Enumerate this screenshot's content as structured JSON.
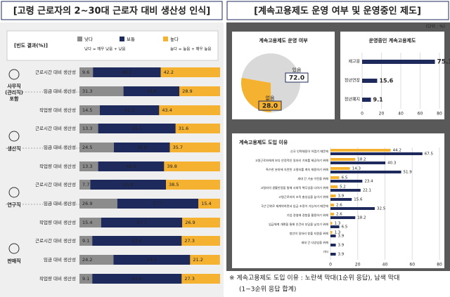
{
  "chart_data": [
    {
      "type": "stacked-bar",
      "title": "[고령 근로자의 2~30대 근로자 대비 생산성 인식]",
      "legend_title": "[빈도 결과(%)]",
      "legend_notes": [
        "낮다 = 매우 낮음 + 낮음",
        "높다 = 높음 + 매우 높음"
      ],
      "groups": [
        [
          "사무직",
          "(관리직)",
          "포함"
        ],
        [
          "생산직"
        ],
        [
          "연구직"
        ],
        [
          "판매직"
        ]
      ],
      "categories": [
        "근로시간 대비 생산성",
        "임금 대비 생산성",
        "작업량 대비 생산성",
        "근로시간 대비 생산성",
        "임금 대비 생산성",
        "작업량 대비 생산성",
        "근로시간 대비 생산성",
        "임금 대비 생산성",
        "작업량 대비 생산성",
        "근로시간 대비 생산성",
        "임금 대비 생산성",
        "작업량 대비 생산성"
      ],
      "xlim": [
        0,
        100
      ],
      "series": [
        {
          "name": "낮다",
          "color": "#8c8c8c",
          "values": [
            9.6,
            31.3,
            14.5,
            13.3,
            24.5,
            13.3,
            7.7,
            26.9,
            15.4,
            9.1,
            24.2,
            9.1
          ]
        },
        {
          "name": "보통",
          "color": "#1f2a5c",
          "values": [
            48.2,
            39.8,
            42.2,
            55.1,
            39.8,
            46.9,
            53.8,
            57.7,
            57.7,
            63.6,
            54.5,
            63.6
          ]
        },
        {
          "name": "높다",
          "color": "#f5b230",
          "values": [
            42.2,
            28.9,
            43.4,
            31.6,
            35.7,
            39.8,
            38.5,
            15.4,
            26.9,
            27.3,
            21.2,
            27.3
          ]
        }
      ]
    },
    {
      "type": "pie",
      "panel_title": "[계속고용제도 운영 여부 및 운영중인 제도]",
      "unit": "(단위 : %)",
      "title": "계속고용제도 운영 여부",
      "categories": [
        "있음",
        "없음"
      ],
      "values": [
        72.0,
        28.0
      ],
      "value_labels": [
        "72.0",
        "28.0"
      ],
      "colors": [
        "#d9d9d9",
        "#f5b230"
      ]
    },
    {
      "type": "hbar",
      "title": "운영중인 계속고용제도",
      "categories": [
        "재고용",
        "정년연장",
        "정년폐지"
      ],
      "values": [
        75.3,
        15.6,
        9.1
      ],
      "color": "#1f2a5c",
      "highlight_color": "#f5b230",
      "xlim": [
        0,
        80
      ],
      "xticks": [
        0,
        20,
        40,
        60,
        80
      ]
    },
    {
      "type": "paired-hbar",
      "title": "계속고용제도 도입 이유",
      "categories": [
        "신규 인력채용이 어렵기 때문에",
        "고령근로자에게 보다 안정적인 일자리 기회를 제공하기 위해",
        "특수한 분야에 숙련된 고령자를 계속 채용하기 위해",
        "세대 간 기술 이전을 위해",
        "고령자의 생활안정을 통해 사회적 책무성을 다하기 위해",
        "고령근로자의 조직 충성심을 높이기 위해",
        "1년 단위로 재계약하면서 임금 조정이 가능하기 때문에",
        "기업 경영에 경험을 활용하기 위해",
        "임금체계 개편을 통해 인건비 부담을 낮추기 위해",
        "청년의 일자리 창출 지원을 위해",
        "세대 간 다양성을 위해",
        "기타"
      ],
      "series": [
        {
          "name": "1순위",
          "color": "#f5b230",
          "values": [
            44.2,
            18.2,
            14.3,
            6.5,
            5.2,
            3.9,
            2.6,
            2.6,
            1.3,
            1.3,
            0,
            0
          ]
        },
        {
          "name": "1~3순위",
          "color": "#1f2a5c",
          "values": [
            67.5,
            40.3,
            51.9,
            23.4,
            22.1,
            15.6,
            32.5,
            18.2,
            6.5,
            3.9,
            3.9,
            3.9
          ]
        }
      ],
      "xlim": [
        0,
        80
      ],
      "xticks": [
        0,
        20,
        40,
        60,
        80
      ],
      "note": [
        "※ 계속고용제도 도입 이유 : 노란색 막대(1순위 응답), 남색 막대",
        "(1~3순위 응답 합계)"
      ]
    }
  ]
}
